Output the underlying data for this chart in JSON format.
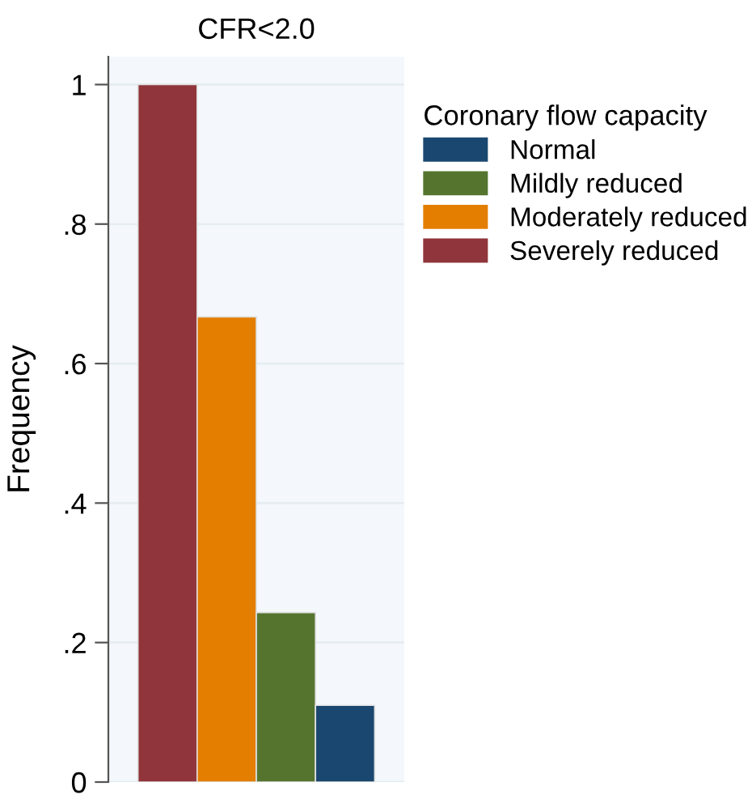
{
  "chart_data": {
    "type": "bar",
    "title": "CFR<2.0",
    "ylabel": "Frequency",
    "legend_title": "Coronary flow capacity",
    "categories": [
      null
    ],
    "series": [
      {
        "name": "Severely reduced",
        "color": "#90353b",
        "values": [
          1.0
        ]
      },
      {
        "name": "Moderately reduced",
        "color": "#e37e00",
        "values": [
          0.667
        ]
      },
      {
        "name": "Mildly reduced",
        "color": "#55752f",
        "values": [
          0.243
        ]
      },
      {
        "name": "Normal",
        "color": "#1a476f",
        "values": [
          0.11
        ]
      }
    ],
    "ylim": [
      0,
      1.04
    ],
    "yticks": [
      0,
      {
        "value": 0.2,
        "label": ".2"
      },
      {
        "value": 0.4,
        "label": ".4"
      },
      {
        "value": 0.6,
        "label": ".6"
      },
      {
        "value": 0.8,
        "label": ".8"
      },
      1
    ],
    "grid": "y",
    "legend": "right"
  }
}
